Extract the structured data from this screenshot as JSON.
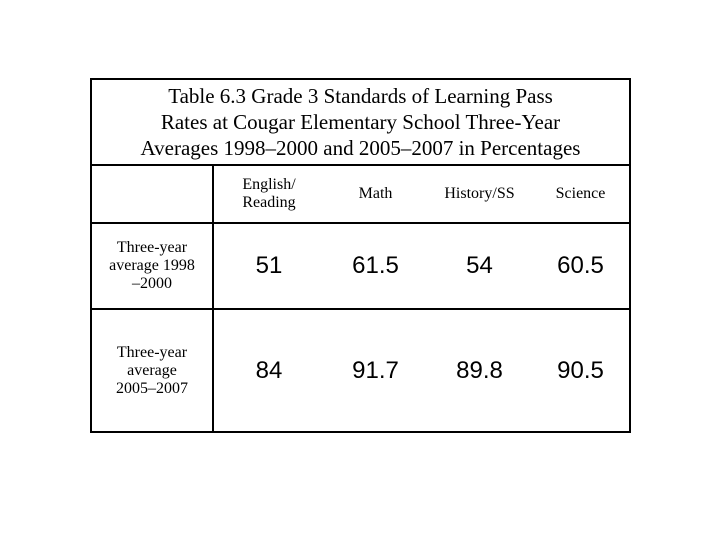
{
  "title_lines": [
    "Table 6.3 Grade 3 Standards of Learning Pass",
    "Rates at Cougar Elementary School Three-Year",
    "Averages 1998–2000 and 2005–2007 in Percentages"
  ],
  "columns": [
    "English/ Reading",
    "Math",
    "History/SS",
    "Science"
  ],
  "columns_split": [
    [
      "English/",
      "Reading"
    ],
    [
      "Math"
    ],
    [
      "History/SS"
    ],
    [
      "Science"
    ]
  ],
  "rows": [
    {
      "label_lines": [
        "Three-year",
        "average 1998",
        "–2000"
      ],
      "values": [
        "51",
        "61.5",
        "54",
        "60.5"
      ]
    },
    {
      "label_lines": [
        "Three-year",
        "average",
        "2005–2007"
      ],
      "values": [
        "84",
        "91.7",
        "89.8",
        "90.5"
      ]
    }
  ]
}
